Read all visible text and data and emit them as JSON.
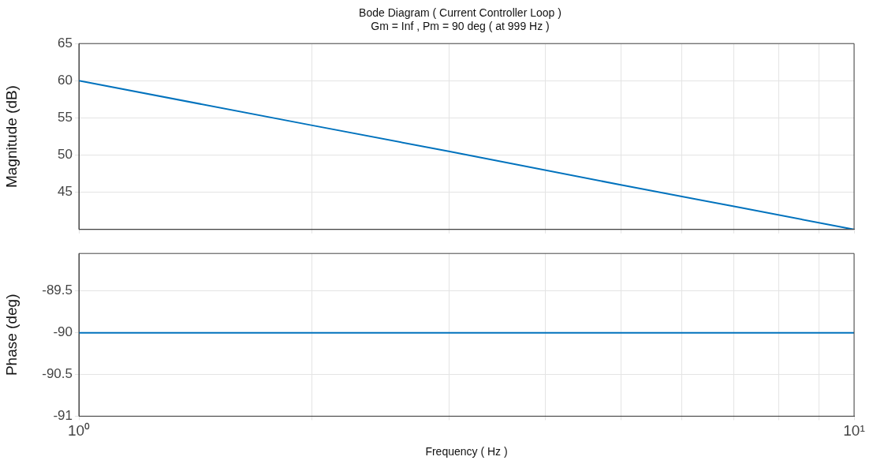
{
  "chart_data": [
    {
      "type": "line",
      "title": "Bode Diagram ( Current Controller Loop )",
      "subtitle": "Gm = Inf , Pm = 90 deg ( at 999 Hz )",
      "ylabel": "Magnitude (dB)",
      "log": "x",
      "grid": true,
      "legend": false,
      "marker": "none",
      "line_style": "solid",
      "tick_labels": "y",
      "x": [
        1,
        2,
        3,
        5,
        7,
        10
      ],
      "series": [
        {
          "color": "#0072bd",
          "values": [
            60,
            54,
            50.5,
            46,
            43.1,
            40
          ]
        }
      ],
      "xlim": [
        1,
        10
      ],
      "xticks": [
        {
          "value": 1,
          "label": null
        },
        {
          "value": 2,
          "label": null
        },
        {
          "value": 3,
          "label": null
        },
        {
          "value": 4,
          "label": null
        },
        {
          "value": 5,
          "label": null
        },
        {
          "value": 6,
          "label": null
        },
        {
          "value": 7,
          "label": null
        },
        {
          "value": 8,
          "label": null
        },
        {
          "value": 9,
          "label": null
        },
        {
          "value": 10,
          "label": null
        }
      ],
      "ylim": [
        40,
        65
      ],
      "yticks": [
        45,
        50,
        55,
        60,
        65
      ]
    },
    {
      "type": "line",
      "ylabel": "Phase (deg)",
      "xlabel": "Frequency ( Hz )",
      "log": "x",
      "grid": true,
      "legend": false,
      "marker": "none",
      "line_style": "solid",
      "x": [
        1,
        3,
        10
      ],
      "series": [
        {
          "color": "#0072bd",
          "values": [
            -90,
            -90,
            -90
          ]
        }
      ],
      "xlim": [
        1,
        10
      ],
      "xticks": [
        {
          "value": 1,
          "label": "10⁰"
        },
        {
          "value": 2,
          "label": null
        },
        {
          "value": 3,
          "label": null
        },
        {
          "value": 4,
          "label": null
        },
        {
          "value": 5,
          "label": null
        },
        {
          "value": 6,
          "label": null
        },
        {
          "value": 7,
          "label": null
        },
        {
          "value": 8,
          "label": null
        },
        {
          "value": 9,
          "label": null
        },
        {
          "value": 10,
          "label": "10¹"
        }
      ],
      "ylim": [
        -91,
        -89.05
      ],
      "yticks": [
        -91,
        -90.5,
        -90,
        -89.5
      ]
    }
  ]
}
